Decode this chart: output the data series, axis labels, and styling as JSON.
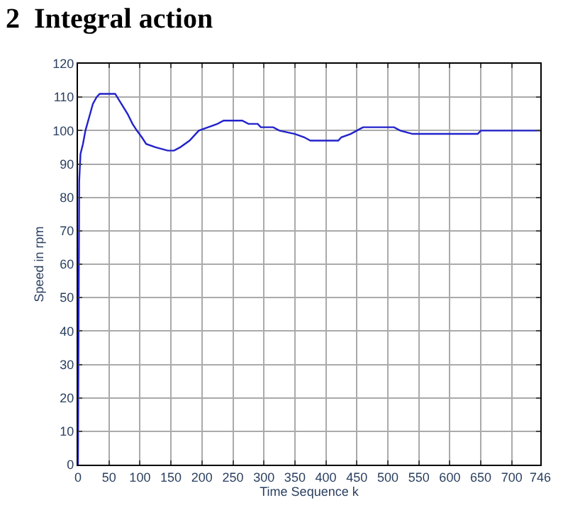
{
  "chart_data": {
    "type": "line",
    "title": "2  Integral action",
    "xlabel": "Time Sequence k",
    "ylabel": "Speed in rpm",
    "x": [
      0,
      2,
      4,
      8,
      12,
      18,
      24,
      30,
      35,
      60,
      70,
      80,
      88,
      95,
      103,
      110,
      125,
      145,
      155,
      165,
      180,
      195,
      210,
      225,
      235,
      265,
      275,
      290,
      295,
      315,
      325,
      350,
      365,
      375,
      420,
      425,
      440,
      450,
      460,
      510,
      520,
      540,
      645,
      650,
      746
    ],
    "series": [
      {
        "color": "#2222cc",
        "values": [
          0,
          85,
          93,
          96,
          100,
          104,
          108,
          110,
          111,
          111,
          108,
          105,
          102,
          100,
          98,
          96,
          95,
          94,
          94,
          95,
          97,
          100,
          101,
          102,
          103,
          103,
          102,
          102,
          101,
          101,
          100,
          99,
          98,
          97,
          97,
          98,
          99,
          100,
          101,
          101,
          100,
          99,
          99,
          100,
          100
        ]
      }
    ],
    "xlim": [
      0,
      746
    ],
    "ylim": [
      0,
      120
    ],
    "xticks": [
      0,
      50,
      100,
      150,
      200,
      250,
      300,
      350,
      400,
      450,
      500,
      550,
      600,
      650,
      700,
      746
    ],
    "yticks": [
      0,
      10,
      20,
      30,
      40,
      50,
      60,
      70,
      80,
      90,
      100,
      110,
      120
    ],
    "grid": true,
    "marker": "none",
    "line_style": "solid"
  }
}
